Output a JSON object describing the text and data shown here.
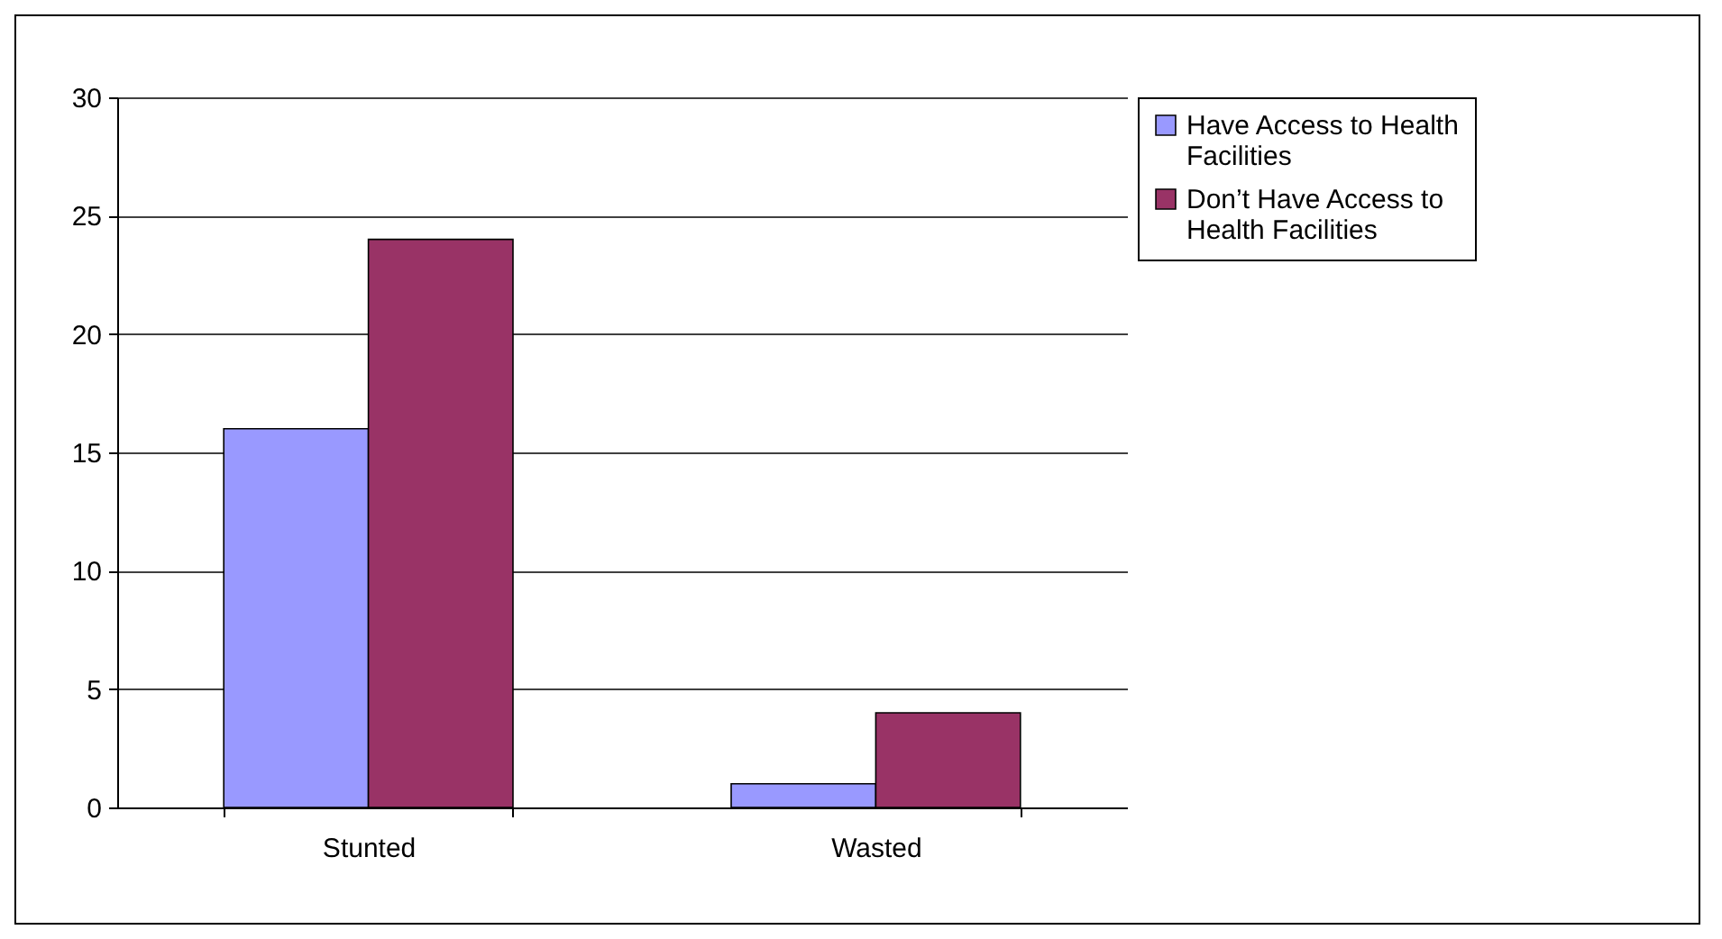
{
  "chart_data": {
    "type": "bar",
    "categories": [
      "Stunted",
      "Wasted"
    ],
    "series": [
      {
        "name": "Have Access to Health Facilities",
        "color": "#9999ff",
        "values": [
          16,
          1
        ]
      },
      {
        "name": "Don’t Have Access to Health Facilities",
        "color": "#993366",
        "values": [
          24,
          4
        ]
      }
    ],
    "ylim": [
      0,
      30
    ],
    "yticks": [
      0,
      5,
      10,
      15,
      20,
      25,
      30
    ],
    "grid": "y",
    "legend": "right"
  }
}
